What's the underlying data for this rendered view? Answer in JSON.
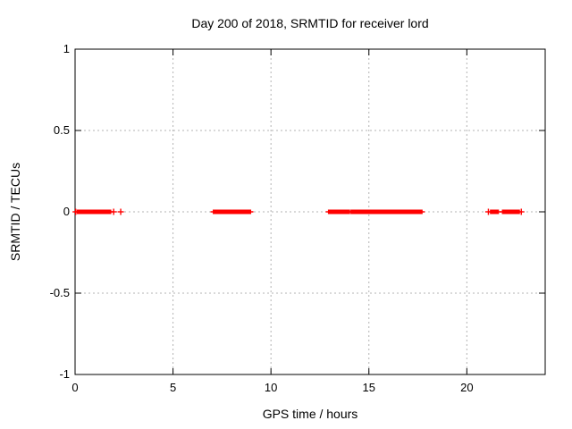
{
  "chart_data": {
    "type": "scatter",
    "marker": "plus",
    "title": "Day 200 of 2018, SRMTID for receiver lord",
    "xlabel": "GPS time / hours",
    "ylabel": "SRMTID / TECUs",
    "xlim": [
      0,
      24
    ],
    "ylim": [
      -1,
      1
    ],
    "xticks": [
      0,
      5,
      10,
      15,
      20
    ],
    "xtick_labels": [
      "0",
      "5",
      "10",
      "15",
      "20"
    ],
    "yticks": [
      1,
      0.5,
      0,
      -0.5,
      -1
    ],
    "ytick_labels": [
      "1",
      "0.5",
      "0",
      "-0.5",
      "-1"
    ],
    "grid": true,
    "grid_xticks": [
      5,
      10,
      15,
      20
    ],
    "grid_yticks": [
      0.5,
      0,
      -0.5
    ],
    "legend": "none",
    "series_name": "SRMTID",
    "y_value": 0,
    "segments_hours": [
      [
        0.17,
        1.76
      ],
      [
        7.12,
        7.8
      ],
      [
        7.95,
        8.9
      ],
      [
        13.0,
        13.95
      ],
      [
        14.15,
        14.65
      ],
      [
        14.82,
        15.1
      ],
      [
        15.25,
        17.65
      ],
      [
        21.27,
        21.55
      ],
      [
        21.88,
        22.62
      ]
    ],
    "isolated_points_hours": [
      0.03,
      1.97,
      2.33,
      21.1,
      22.78
    ],
    "colors": {
      "series": "#ff0000",
      "grid": "#b3b3b3",
      "border": "#000000",
      "text": "#000000",
      "background": "#ffffff"
    }
  }
}
